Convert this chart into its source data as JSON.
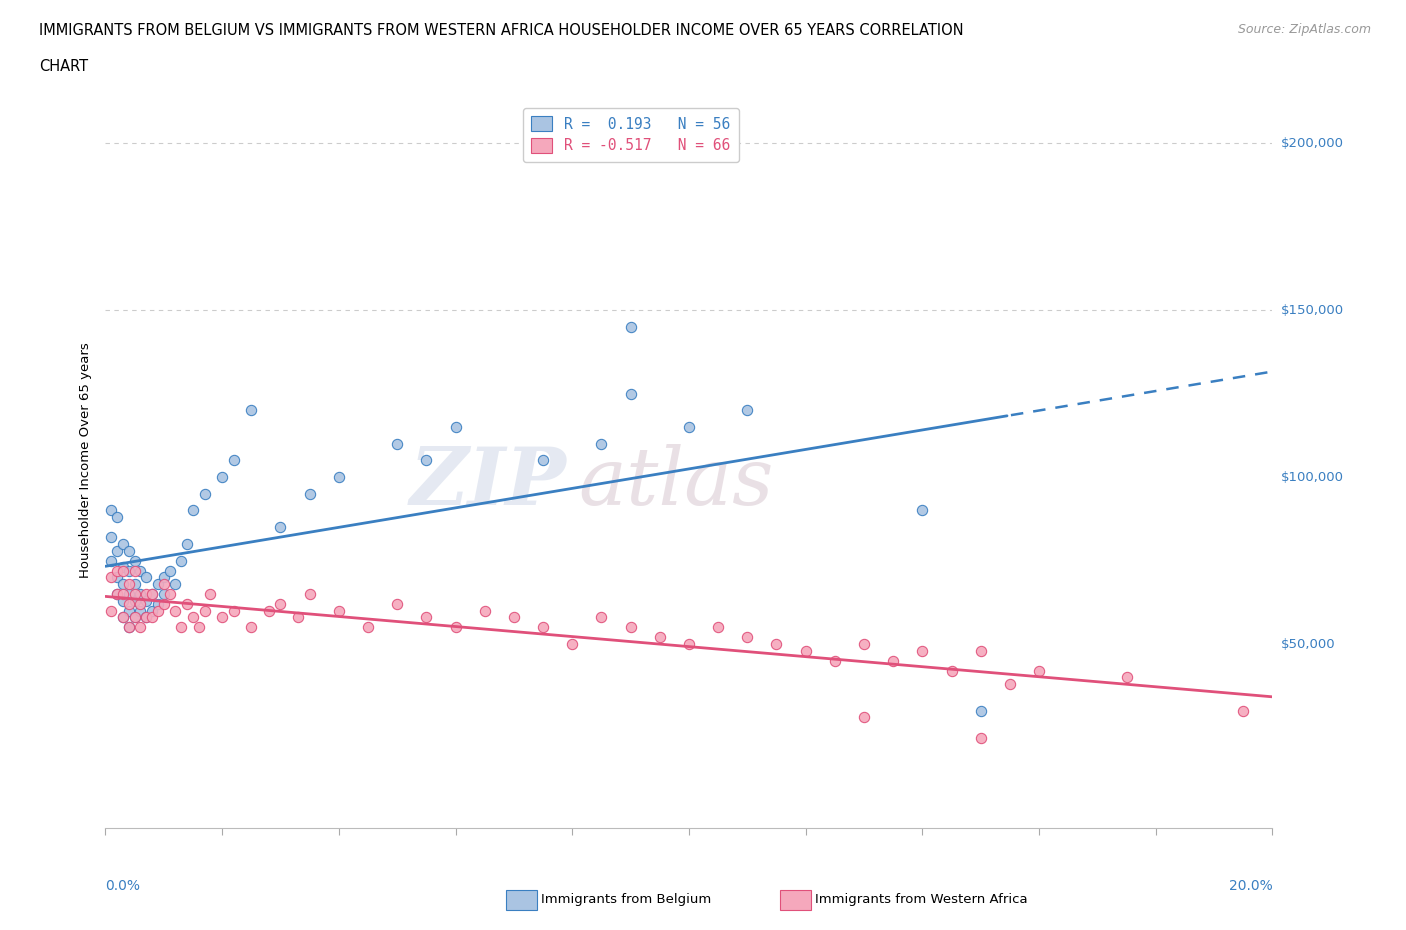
{
  "title_line1": "IMMIGRANTS FROM BELGIUM VS IMMIGRANTS FROM WESTERN AFRICA HOUSEHOLDER INCOME OVER 65 YEARS CORRELATION",
  "title_line2": "CHART",
  "source": "Source: ZipAtlas.com",
  "ylabel": "Householder Income Over 65 years",
  "xlim": [
    0.0,
    0.2
  ],
  "ylim": [
    -5000,
    215000
  ],
  "yticks": [
    50000,
    100000,
    150000,
    200000
  ],
  "ytick_labels": [
    "$50,000",
    "$100,000",
    "$150,000",
    "$200,000"
  ],
  "watermark_part1": "ZIP",
  "watermark_part2": "atlas",
  "belgium_color": "#aac4e2",
  "western_africa_color": "#f5a8bc",
  "belgium_line_color": "#3a7fc1",
  "western_africa_line_color": "#e0507a",
  "belgium_edge_color": "#3a7fc1",
  "western_africa_edge_color": "#e0507a",
  "hline_y": [
    150000,
    200000
  ],
  "hline_color": "#cccccc",
  "background_color": "#ffffff",
  "belgium_scatter_x": [
    0.001,
    0.001,
    0.001,
    0.002,
    0.002,
    0.002,
    0.002,
    0.003,
    0.003,
    0.003,
    0.003,
    0.003,
    0.004,
    0.004,
    0.004,
    0.004,
    0.004,
    0.005,
    0.005,
    0.005,
    0.005,
    0.006,
    0.006,
    0.006,
    0.007,
    0.007,
    0.007,
    0.008,
    0.008,
    0.009,
    0.009,
    0.01,
    0.01,
    0.011,
    0.012,
    0.013,
    0.014,
    0.015,
    0.017,
    0.02,
    0.022,
    0.025,
    0.03,
    0.035,
    0.04,
    0.05,
    0.055,
    0.06,
    0.075,
    0.085,
    0.09,
    0.1,
    0.14,
    0.15,
    0.09,
    0.11
  ],
  "belgium_scatter_y": [
    75000,
    82000,
    90000,
    65000,
    70000,
    78000,
    88000,
    58000,
    63000,
    68000,
    73000,
    80000,
    55000,
    60000,
    65000,
    72000,
    78000,
    58000,
    63000,
    68000,
    75000,
    60000,
    65000,
    72000,
    58000,
    63000,
    70000,
    60000,
    65000,
    62000,
    68000,
    65000,
    70000,
    72000,
    68000,
    75000,
    80000,
    90000,
    95000,
    100000,
    105000,
    120000,
    85000,
    95000,
    100000,
    110000,
    105000,
    115000,
    105000,
    110000,
    125000,
    115000,
    90000,
    30000,
    145000,
    120000
  ],
  "western_africa_scatter_x": [
    0.001,
    0.001,
    0.002,
    0.002,
    0.003,
    0.003,
    0.003,
    0.004,
    0.004,
    0.004,
    0.005,
    0.005,
    0.005,
    0.006,
    0.006,
    0.007,
    0.007,
    0.008,
    0.008,
    0.009,
    0.01,
    0.01,
    0.011,
    0.012,
    0.013,
    0.014,
    0.015,
    0.016,
    0.017,
    0.018,
    0.02,
    0.022,
    0.025,
    0.028,
    0.03,
    0.033,
    0.035,
    0.04,
    0.045,
    0.05,
    0.055,
    0.06,
    0.065,
    0.07,
    0.075,
    0.08,
    0.085,
    0.09,
    0.095,
    0.1,
    0.105,
    0.11,
    0.115,
    0.12,
    0.125,
    0.13,
    0.135,
    0.14,
    0.145,
    0.15,
    0.155,
    0.16,
    0.13,
    0.15,
    0.175,
    0.195
  ],
  "western_africa_scatter_y": [
    70000,
    60000,
    65000,
    72000,
    58000,
    65000,
    72000,
    55000,
    62000,
    68000,
    58000,
    65000,
    72000,
    55000,
    62000,
    58000,
    65000,
    58000,
    65000,
    60000,
    62000,
    68000,
    65000,
    60000,
    55000,
    62000,
    58000,
    55000,
    60000,
    65000,
    58000,
    60000,
    55000,
    60000,
    62000,
    58000,
    65000,
    60000,
    55000,
    62000,
    58000,
    55000,
    60000,
    58000,
    55000,
    50000,
    58000,
    55000,
    52000,
    50000,
    55000,
    52000,
    50000,
    48000,
    45000,
    50000,
    45000,
    48000,
    42000,
    48000,
    38000,
    42000,
    28000,
    22000,
    40000,
    30000
  ],
  "legend_text_1": "R =  0.193   N = 56",
  "legend_text_2": "R = -0.517   N = 66",
  "legend_label_1": "Immigrants from Belgium",
  "legend_label_2": "Immigrants from Western Africa"
}
